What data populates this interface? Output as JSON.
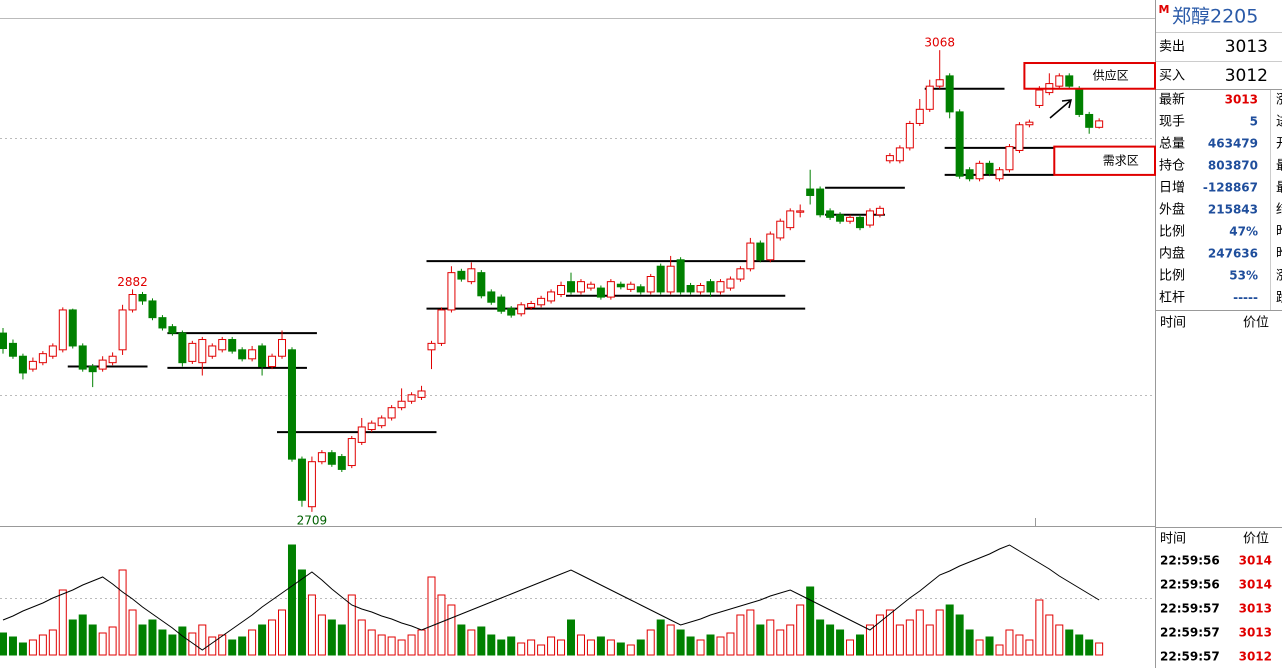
{
  "chart_data": [
    {
      "type": "candlestick",
      "open": [
        2848,
        2840,
        2830,
        2820,
        2825,
        2830,
        2835,
        2866,
        2838,
        2822,
        2820,
        2825,
        2835,
        2866,
        2878,
        2873,
        2860,
        2853,
        2848,
        2826,
        2825,
        2830,
        2835,
        2843,
        2835,
        2828,
        2838,
        2822,
        2830,
        2835,
        2750,
        2713,
        2748,
        2755,
        2752,
        2745,
        2763,
        2773,
        2776,
        2782,
        2790,
        2795,
        2798,
        2835,
        2840,
        2866,
        2896,
        2888,
        2895,
        2880,
        2876,
        2867,
        2863,
        2868,
        2870,
        2873,
        2878,
        2888,
        2880,
        2883,
        2883,
        2876,
        2886,
        2882,
        2884,
        2880,
        2900,
        2880,
        2905,
        2885,
        2880,
        2888,
        2880,
        2883,
        2890,
        2898,
        2918,
        2905,
        2922,
        2930,
        2942,
        2960,
        2960,
        2943,
        2940,
        2935,
        2938,
        2932,
        2940,
        2982,
        2982,
        2992,
        3011,
        3022,
        3040,
        3048,
        3020,
        2975,
        2968,
        2980,
        2968,
        2975,
        2990,
        3010,
        3025,
        3035,
        3040,
        3048,
        3038,
        3018,
        3008
      ],
      "high": [
        2852,
        2843,
        2832,
        2829,
        2834,
        2840,
        2868,
        2867,
        2840,
        2824,
        2830,
        2833,
        2870,
        2882,
        2880,
        2875,
        2862,
        2855,
        2850,
        2842,
        2845,
        2840,
        2845,
        2845,
        2837,
        2838,
        2840,
        2832,
        2850,
        2837,
        2752,
        2752,
        2757,
        2757,
        2754,
        2768,
        2782,
        2780,
        2784,
        2792,
        2805,
        2802,
        2807,
        2842,
        2868,
        2900,
        2898,
        2903,
        2897,
        2882,
        2878,
        2869,
        2872,
        2873,
        2877,
        2882,
        2888,
        2895,
        2890,
        2888,
        2885,
        2890,
        2888,
        2888,
        2886,
        2894,
        2902,
        2908,
        2907,
        2887,
        2887,
        2890,
        2890,
        2892,
        2900,
        2922,
        2920,
        2927,
        2937,
        2945,
        2948,
        2975,
        2962,
        2945,
        2942,
        2940,
        2940,
        2945,
        2947,
        2988,
        2994,
        3013,
        3030,
        3045,
        3068,
        3050,
        3022,
        2977,
        2982,
        2982,
        2977,
        2995,
        3012,
        3014,
        3040,
        3050,
        3050,
        3050,
        3040,
        3020,
        3015
      ],
      "low": [
        2832,
        2828,
        2812,
        2818,
        2823,
        2828,
        2833,
        2836,
        2818,
        2806,
        2818,
        2823,
        2831,
        2864,
        2870,
        2858,
        2850,
        2846,
        2822,
        2824,
        2815,
        2828,
        2833,
        2832,
        2826,
        2826,
        2815,
        2820,
        2828,
        2748,
        2713,
        2709,
        2746,
        2744,
        2740,
        2743,
        2761,
        2771,
        2774,
        2780,
        2788,
        2793,
        2796,
        2820,
        2838,
        2864,
        2888,
        2886,
        2875,
        2870,
        2863,
        2860,
        2861,
        2866,
        2868,
        2871,
        2876,
        2878,
        2878,
        2881,
        2874,
        2874,
        2882,
        2880,
        2878,
        2878,
        2878,
        2878,
        2878,
        2878,
        2878,
        2876,
        2878,
        2881,
        2888,
        2896,
        2903,
        2903,
        2920,
        2928,
        2938,
        2948,
        2938,
        2936,
        2933,
        2933,
        2928,
        2930,
        2938,
        2980,
        2980,
        2990,
        3009,
        3020,
        3038,
        3015,
        2968,
        2966,
        2966,
        2970,
        2966,
        2973,
        2988,
        3008,
        3023,
        3033,
        3038,
        3038,
        3016,
        3003,
        3007
      ],
      "close": [
        2836,
        2830,
        2817,
        2826,
        2832,
        2838,
        2866,
        2838,
        2820,
        2818,
        2827,
        2830,
        2866,
        2878,
        2873,
        2860,
        2852,
        2848,
        2825,
        2840,
        2843,
        2838,
        2843,
        2834,
        2828,
        2835,
        2822,
        2830,
        2843,
        2750,
        2718,
        2748,
        2755,
        2746,
        2742,
        2766,
        2775,
        2778,
        2782,
        2790,
        2795,
        2800,
        2803,
        2840,
        2866,
        2895,
        2890,
        2898,
        2877,
        2872,
        2865,
        2862,
        2870,
        2871,
        2875,
        2880,
        2885,
        2880,
        2888,
        2886,
        2876,
        2888,
        2884,
        2886,
        2880,
        2892,
        2880,
        2900,
        2880,
        2880,
        2885,
        2880,
        2888,
        2890,
        2898,
        2918,
        2905,
        2925,
        2935,
        2943,
        2943,
        2955,
        2940,
        2938,
        2935,
        2938,
        2930,
        2943,
        2945,
        2986,
        2992,
        3011,
        3022,
        3040,
        3045,
        3020,
        2970,
        2968,
        2980,
        2972,
        2975,
        2993,
        3010,
        3012,
        3037,
        3042,
        3048,
        3040,
        3018,
        3008,
        3013
      ],
      "ylim": [
        2698,
        3093
      ],
      "grid_levels": [
        2800,
        3000
      ],
      "up_color": "#e00000",
      "down_color": "#008000",
      "annotations": [
        {
          "index": 94,
          "value": 3068,
          "position": "above"
        },
        {
          "index": 13,
          "value": 2882,
          "position": "above"
        },
        {
          "index": 31,
          "value": 2709,
          "position": "below"
        }
      ],
      "levels": [
        {
          "start": 7,
          "end": 14,
          "value": 2822
        },
        {
          "start": 17,
          "end": 31,
          "value": 2848
        },
        {
          "start": 17,
          "end": 30,
          "value": 2821
        },
        {
          "start": 28,
          "end": 43,
          "value": 2771
        },
        {
          "start": 43,
          "end": 80,
          "value": 2904
        },
        {
          "start": 43,
          "end": 80,
          "value": 2867
        },
        {
          "start": 57,
          "end": 78,
          "value": 2877
        },
        {
          "start": 83,
          "end": 90,
          "value": 2961
        },
        {
          "start": 83,
          "end": 88,
          "value": 2940
        },
        {
          "start": 93,
          "end": 100,
          "value": 3038
        },
        {
          "start": 95,
          "end": 105,
          "value": 2992
        },
        {
          "start": 95,
          "end": 105,
          "value": 2971
        }
      ],
      "zones": [
        {
          "label": "供应区",
          "start": 103,
          "top": 3058,
          "bottom": 3038
        },
        {
          "label": "需求区",
          "start": 106,
          "top": 2993,
          "bottom": 2971
        }
      ]
    },
    {
      "type": "volume",
      "values": [
        22,
        18,
        12,
        15,
        20,
        25,
        65,
        35,
        40,
        30,
        22,
        28,
        85,
        45,
        30,
        35,
        25,
        20,
        28,
        22,
        30,
        18,
        20,
        15,
        18,
        25,
        30,
        35,
        45,
        110,
        85,
        60,
        40,
        35,
        30,
        60,
        35,
        25,
        20,
        18,
        15,
        20,
        25,
        78,
        60,
        50,
        30,
        25,
        28,
        20,
        15,
        18,
        12,
        15,
        10,
        18,
        15,
        35,
        20,
        15,
        18,
        15,
        12,
        10,
        15,
        25,
        35,
        30,
        25,
        18,
        15,
        20,
        18,
        22,
        40,
        45,
        30,
        35,
        25,
        30,
        50,
        68,
        35,
        30,
        25,
        15,
        20,
        30,
        40,
        45,
        30,
        35,
        45,
        30,
        45,
        50,
        40,
        25,
        15,
        18,
        10,
        25,
        20,
        15,
        55,
        40,
        30,
        25,
        20,
        15,
        12
      ],
      "ma": [
        35,
        39,
        44,
        48,
        52,
        57,
        61,
        65,
        70,
        74,
        78,
        71,
        63,
        56,
        48,
        41,
        34,
        27,
        19,
        12,
        5,
        12,
        19,
        26,
        33,
        40,
        48,
        55,
        62,
        69,
        76,
        83,
        75,
        66,
        58,
        50,
        46,
        43,
        39,
        36,
        32,
        29,
        25,
        29,
        33,
        37,
        41,
        45,
        49,
        53,
        57,
        61,
        65,
        69,
        73,
        77,
        81,
        85,
        80,
        75,
        70,
        65,
        60,
        55,
        50,
        45,
        40,
        35,
        30,
        33,
        36,
        40,
        43,
        46,
        49,
        52,
        55,
        59,
        62,
        65,
        60,
        55,
        50,
        45,
        40,
        35,
        30,
        25,
        33,
        41,
        49,
        57,
        64,
        72,
        80,
        84,
        89,
        93,
        97,
        101,
        106,
        110,
        104,
        98,
        92,
        86,
        79,
        73,
        67,
        61,
        55
      ],
      "ma_color": "#000000",
      "ylim": [
        0,
        125
      ],
      "grid_levels": [
        57
      ]
    }
  ],
  "quote": {
    "badge": "M",
    "symbol": "郑醇2205",
    "ask_label": "卖出",
    "ask": 3013,
    "bid_label": "买入",
    "bid": 3012,
    "rows": [
      {
        "label": "最新",
        "value": 3013,
        "side": "涨"
      },
      {
        "label": "现手",
        "value": 5,
        "side": "进"
      },
      {
        "label": "总量",
        "value": 463479,
        "side": "开"
      },
      {
        "label": "持仓",
        "value": 803870,
        "side": "最"
      },
      {
        "label": "日增",
        "value": -128867,
        "side": "最"
      },
      {
        "label": "外盘",
        "value": 215843,
        "side": "结"
      },
      {
        "label": "比例",
        "value": "47%",
        "side": "昨"
      },
      {
        "label": "内盘",
        "value": 247636,
        "side": "昨"
      },
      {
        "label": "比例",
        "value": "53%",
        "side": "涨"
      },
      {
        "label": "杠杆",
        "value": "-----",
        "side": "跌"
      }
    ],
    "ticks_header": [
      "时间",
      "价位"
    ],
    "trades_header": [
      "时间",
      "价位"
    ],
    "trades": [
      [
        "22:59:56",
        3014
      ],
      [
        "22:59:56",
        3014
      ],
      [
        "22:59:57",
        3013
      ],
      [
        "22:59:57",
        3013
      ],
      [
        "22:59:57",
        3012
      ]
    ]
  }
}
